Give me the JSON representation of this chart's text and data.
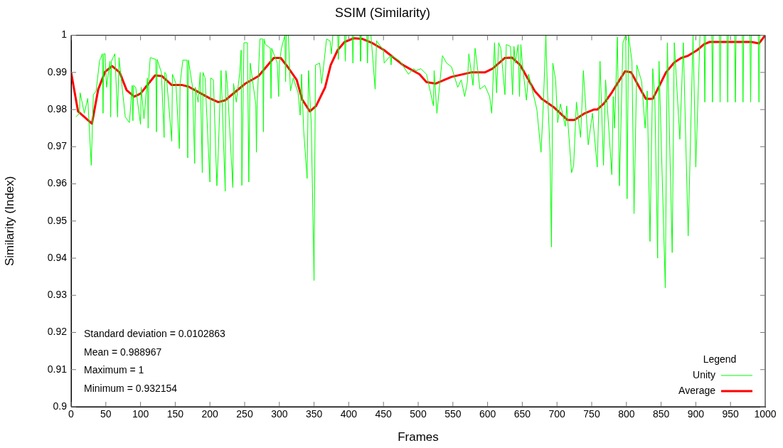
{
  "chart_data": {
    "type": "line",
    "title": "SSIM (Similarity)",
    "xlabel": "Frames",
    "ylabel": "Similarity (Index)",
    "legend_title": "Legend",
    "legend": "bottom right",
    "marker": "none",
    "grid": false,
    "xlim": [
      0,
      1000
    ],
    "xticks": [
      0,
      50,
      100,
      150,
      200,
      250,
      300,
      350,
      400,
      450,
      500,
      550,
      600,
      650,
      700,
      750,
      800,
      850,
      900,
      950,
      1000
    ],
    "ylim": [
      0.9,
      1
    ],
    "yticks": [
      0.9,
      0.91,
      0.92,
      0.93,
      0.94,
      0.95,
      0.96,
      0.97,
      0.98,
      0.99,
      1
    ],
    "annotations": [
      "Standard deviation = 0.0102863",
      "Mean = 0.988967",
      "Maximum = 1",
      "Minimum = 0.932154"
    ],
    "series": [
      {
        "name": "Unity",
        "color": "#00ff00",
        "x": [
          7,
          12,
          13,
          19,
          24,
          29,
          32,
          36,
          41,
          45,
          46,
          47,
          49,
          51,
          56,
          57,
          58,
          63,
          67,
          69,
          78,
          84,
          88,
          89,
          90,
          93,
          100,
          101,
          105,
          110,
          111,
          112,
          114,
          122,
          123,
          124,
          130,
          134,
          135,
          137,
          145,
          146,
          151,
          156,
          157,
          161,
          167,
          168,
          169,
          175,
          178,
          179,
          183,
          186,
          189,
          190,
          193,
          200,
          201,
          205,
          210,
          212,
          216,
          222,
          223,
          225,
          233,
          234,
          238,
          243,
          245,
          246,
          249,
          254,
          256,
          258,
          266,
          267,
          268,
          272,
          276,
          277,
          278,
          280,
          287,
          288,
          289,
          297,
          299,
          300,
          303,
          308,
          309,
          310,
          313,
          316,
          320,
          327,
          330,
          332,
          335,
          340,
          342,
          346,
          350,
          352,
          358,
          361,
          368,
          373,
          375,
          377,
          384,
          385,
          386,
          392,
          394,
          395,
          396,
          405,
          406,
          407,
          416,
          417,
          418,
          426,
          427,
          428,
          432,
          438,
          440,
          450,
          451,
          460,
          461,
          462,
          474,
          486,
          493,
          497,
          504,
          512,
          522,
          523,
          527,
          535,
          541,
          548,
          557,
          562,
          567,
          571,
          573,
          579,
          582,
          585,
          589,
          596,
          603,
          606,
          610,
          613,
          616,
          619,
          625,
          627,
          633,
          636,
          638,
          640,
          644,
          646,
          648,
          650,
          656,
          659,
          668,
          671,
          677,
          680,
          684,
          686,
          690,
          692,
          694,
          698,
          701,
          705,
          712,
          714,
          721,
          724,
          728,
          734,
          738,
          745,
          751,
          758,
          762,
          767,
          770,
          779,
          781,
          783,
          787,
          790,
          795,
          799,
          801,
          803,
          808,
          811,
          815,
          822,
          827,
          830,
          834,
          838,
          841,
          845,
          847,
          856,
          859,
          866,
          869,
          877,
          882,
          889,
          896,
          900,
          906,
          912,
          913,
          914,
          923,
          924,
          925,
          934,
          935,
          936,
          945,
          946,
          947,
          956,
          957,
          958,
          967,
          968,
          969,
          978,
          979,
          980,
          990,
          991,
          992
        ],
        "values": [
          0.978,
          0.979,
          0.9845,
          0.979,
          0.983,
          0.965,
          0.984,
          0.985,
          0.9931,
          0.995,
          0.979,
          0.995,
          0.995,
          0.986,
          0.993,
          0.978,
          0.993,
          0.995,
          0.978,
          0.994,
          0.978,
          0.9765,
          0.9865,
          0.977,
          0.9865,
          0.986,
          0.976,
          0.986,
          0.9775,
          0.9885,
          0.975,
          0.9885,
          0.994,
          0.9935,
          0.974,
          0.9935,
          0.99,
          0.9725,
          0.99,
          0.9895,
          0.9715,
          0.9895,
          0.987,
          0.9695,
          0.987,
          0.9933,
          0.9933,
          0.967,
          0.9933,
          0.986,
          0.9655,
          0.986,
          0.982,
          0.99,
          0.963,
          0.99,
          0.9885,
          0.9605,
          0.9885,
          0.988,
          0.9595,
          0.9685,
          0.9905,
          0.958,
          0.9905,
          0.987,
          0.959,
          0.987,
          0.982,
          0.99,
          0.996,
          0.9596,
          0.998,
          0.998,
          0.9605,
          0.9925,
          0.9815,
          0.9685,
          0.9815,
          0.999,
          0.999,
          0.974,
          0.999,
          0.9975,
          0.9965,
          0.983,
          0.9965,
          0.9925,
          0.9835,
          0.9925,
          0.9965,
          1,
          0.9875,
          1,
          1,
          0.985,
          0.9885,
          0.9845,
          0.9785,
          0.9895,
          0.9745,
          0.9615,
          0.9905,
          0.976,
          0.934,
          0.992,
          0.9925,
          0.987,
          0.999,
          0.9985,
          0.995,
          1,
          1,
          0.9935,
          1,
          1,
          1,
          0.993,
          1,
          1,
          0.9925,
          1,
          1,
          0.993,
          1,
          1,
          0.9925,
          1,
          1,
          0.9855,
          0.9985,
          0.996,
          0.9925,
          0.9945,
          0.992,
          0.9945,
          0.993,
          0.9895,
          0.991,
          0.9905,
          0.991,
          0.9895,
          0.981,
          0.9905,
          0.979,
          0.9945,
          0.9925,
          0.9915,
          0.986,
          0.988,
          0.9835,
          0.9875,
          0.995,
          0.9865,
          0.9965,
          0.992,
          0.9855,
          0.9865,
          0.9835,
          0.979,
          0.998,
          0.9845,
          0.998,
          0.9965,
          0.984,
          0.9975,
          0.997,
          0.984,
          0.997,
          0.9925,
          0.9975,
          0.9835,
          0.9975,
          0.9925,
          0.9825,
          0.9895,
          0.9825,
          0.98,
          0.9685,
          0.98,
          1,
          0.9865,
          0.9685,
          0.943,
          0.9925,
          0.988,
          0.9765,
          0.9815,
          0.9755,
          0.981,
          0.963,
          0.965,
          0.982,
          0.9725,
          0.9905,
          0.9705,
          0.979,
          0.9645,
          0.993,
          0.965,
          0.988,
          0.9625,
          0.9835,
          0.975,
          0.9995,
          0.9595,
          0.998,
          1,
          0.956,
          1,
          0.993,
          0.952,
          0.992,
          0.9875,
          0.975,
          0.985,
          0.9445,
          0.991,
          0.9825,
          0.94,
          0.993,
          0.932,
          0.998,
          0.9415,
          0.998,
          0.972,
          0.998,
          0.946,
          1,
          0.9645,
          1,
          1,
          0.982,
          1,
          1,
          0.982,
          1,
          1,
          0.982,
          1,
          1,
          0.982,
          1,
          1,
          0.982,
          1,
          1,
          0.982,
          1,
          1,
          0.982,
          1,
          1,
          0.982,
          1
        ]
      },
      {
        "name": "Average",
        "color": "#ff0000",
        "x": [
          0,
          10,
          30,
          39,
          49,
          59,
          70,
          80,
          91,
          100,
          121,
          131,
          145,
          160,
          169,
          200,
          212,
          222,
          251,
          270,
          292,
          302,
          312,
          325,
          333,
          344,
          353,
          366,
          374,
          384,
          394,
          407,
          420,
          433,
          451,
          478,
          502,
          512,
          525,
          548,
          576,
          596,
          607,
          625,
          635,
          647,
          668,
          678,
          695,
          715,
          725,
          740,
          753,
          758,
          768,
          779,
          789,
          798,
          807,
          818,
          828,
          838,
          847,
          857,
          869,
          879,
          889,
          902,
          912,
          920,
          953,
          980,
          991,
          1000
        ],
        "values": [
          0.99,
          0.9795,
          0.9762,
          0.9854,
          0.9902,
          0.9917,
          0.99,
          0.9852,
          0.9835,
          0.9843,
          0.9892,
          0.989,
          0.9866,
          0.9866,
          0.9862,
          0.983,
          0.982,
          0.9825,
          0.987,
          0.989,
          0.9939,
          0.9939,
          0.9915,
          0.988,
          0.9827,
          0.9795,
          0.981,
          0.986,
          0.992,
          0.996,
          0.9982,
          0.9992,
          0.999,
          0.998,
          0.996,
          0.992,
          0.9895,
          0.9874,
          0.987,
          0.9888,
          0.99,
          0.99,
          0.991,
          0.9939,
          0.994,
          0.992,
          0.985,
          0.9829,
          0.9807,
          0.9772,
          0.9772,
          0.979,
          0.98,
          0.98,
          0.9817,
          0.9846,
          0.9876,
          0.9903,
          0.99,
          0.9862,
          0.9829,
          0.9829,
          0.9862,
          0.99,
          0.9927,
          0.9939,
          0.9945,
          0.996,
          0.9976,
          0.9982,
          0.9982,
          0.9982,
          0.9978,
          1
        ]
      }
    ]
  }
}
